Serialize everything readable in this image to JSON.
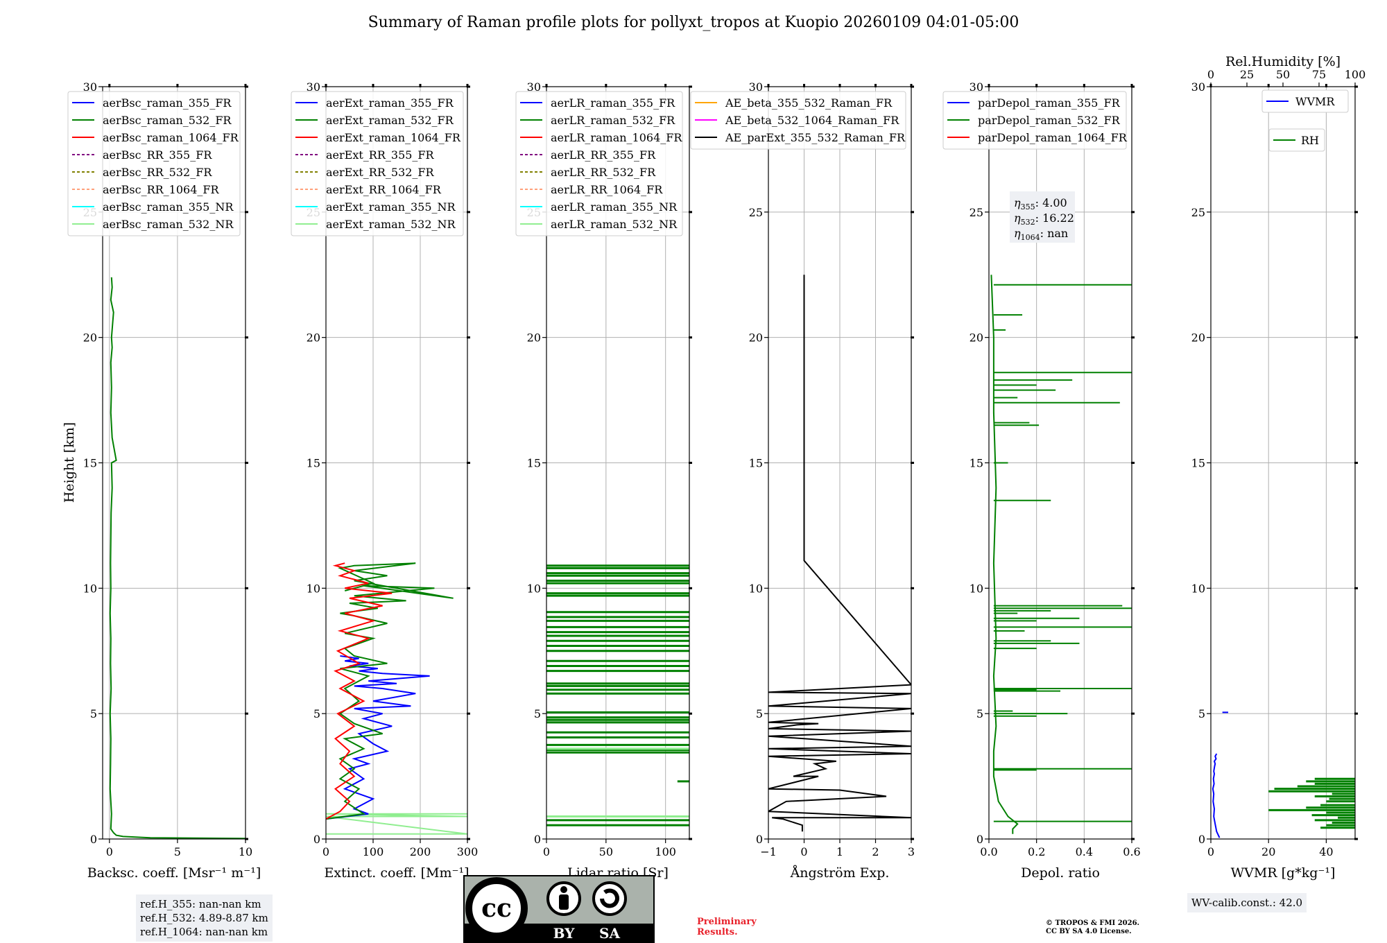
{
  "title": "Summary of Raman profile plots for pollyxt_tropos at Kuopio 20260109 04:01-05:00",
  "ylabel": "Height [km]",
  "ref_box": [
    "ref.H_355: nan-nan km",
    "ref.H_532: 4.89-8.87 km",
    "ref.H_1064: nan-nan km"
  ],
  "wv_box": "WV-calib.const.: 42.0",
  "preliminary": [
    "Preliminary",
    "Results."
  ],
  "copyright": [
    "© TROPOS & FMI 2026.",
    "CC BY SA 4.0 License."
  ],
  "cc_badge": {
    "cc": "cc",
    "by": "BY",
    "sa": "SA"
  },
  "colors": {
    "blue": "#0000ff",
    "green": "#008000",
    "red": "#ff0000",
    "black": "#000000",
    "orange": "#ffa500",
    "magenta": "#ff00ff",
    "purple": "#800080",
    "olive": "#808000",
    "salmon": "#ffa07a",
    "cyan": "#00ffff",
    "lightgreen": "#90ee90"
  },
  "chart_data": [
    {
      "type": "line",
      "xlabel": "Backsc. coeff. [Msr⁻¹ m⁻¹]",
      "xlim": [
        -0.5,
        10
      ],
      "ylim": [
        0,
        30
      ],
      "xticks": [
        0,
        5,
        10
      ],
      "xtick_labels": [
        "0",
        "5",
        "10"
      ],
      "yticks": [
        0,
        5,
        10,
        15,
        20,
        25,
        30
      ],
      "legend": [
        {
          "label": "aerBsc_raman_355_FR",
          "color": "blue",
          "dash": false
        },
        {
          "label": "aerBsc_raman_532_FR",
          "color": "green",
          "dash": false
        },
        {
          "label": "aerBsc_raman_1064_FR",
          "color": "red",
          "dash": false
        },
        {
          "label": "aerBsc_RR_355_FR",
          "color": "purple",
          "dash": true
        },
        {
          "label": "aerBsc_RR_532_FR",
          "color": "olive",
          "dash": true
        },
        {
          "label": "aerBsc_RR_1064_FR",
          "color": "salmon",
          "dash": true
        },
        {
          "label": "aerBsc_raman_355_NR",
          "color": "cyan",
          "dash": false
        },
        {
          "label": "aerBsc_raman_532_NR",
          "color": "lightgreen",
          "dash": false
        }
      ],
      "series": [
        {
          "name": "aerBsc_raman_532_FR",
          "color": "green",
          "x": [
            10,
            3,
            1,
            0.5,
            0.3,
            0.1,
            0.15,
            0.05,
            0.08,
            0.1,
            0.05,
            0.12,
            0.08,
            0.1,
            0.05,
            0.1,
            0.08,
            0.1,
            0.12,
            0.2,
            0.15,
            0.5,
            0.2,
            0.1,
            0.15,
            0.1,
            0.2,
            0.15,
            0.3,
            0.1,
            0.2,
            0.15
          ],
          "y": [
            0.02,
            0.05,
            0.1,
            0.15,
            0.25,
            0.4,
            1,
            2,
            3,
            4,
            5,
            6,
            7,
            8,
            9,
            10,
            11,
            12,
            13,
            14,
            15,
            15.1,
            16,
            17,
            18,
            19,
            19.6,
            20,
            21,
            21.5,
            22,
            22.4
          ]
        }
      ]
    },
    {
      "type": "line",
      "xlabel": "Extinct. coeff. [Mm⁻¹]",
      "xlim": [
        0,
        300
      ],
      "ylim": [
        0,
        30
      ],
      "xticks": [
        0,
        100,
        200,
        300
      ],
      "xtick_labels": [
        "0",
        "100",
        "200",
        "300"
      ],
      "yticks": [
        0,
        5,
        10,
        15,
        20,
        25,
        30
      ],
      "legend": [
        {
          "label": "aerExt_raman_355_FR",
          "color": "blue",
          "dash": false
        },
        {
          "label": "aerExt_raman_532_FR",
          "color": "green",
          "dash": false
        },
        {
          "label": "aerExt_raman_1064_FR",
          "color": "red",
          "dash": false
        },
        {
          "label": "aerExt_RR_355_FR",
          "color": "purple",
          "dash": true
        },
        {
          "label": "aerExt_RR_532_FR",
          "color": "olive",
          "dash": true
        },
        {
          "label": "aerExt_RR_1064_FR",
          "color": "salmon",
          "dash": true
        },
        {
          "label": "aerExt_raman_355_NR",
          "color": "cyan",
          "dash": false
        },
        {
          "label": "aerExt_raman_532_NR",
          "color": "lightgreen",
          "dash": false
        }
      ],
      "series": [
        {
          "name": "aerExt_raman_532_NR",
          "color": "lightgreen",
          "x": [
            0,
            300,
            0,
            300,
            0,
            300
          ],
          "y": [
            0.2,
            0.2,
            0.9,
            0.9,
            1.0,
            1.0
          ]
        },
        {
          "name": "aerExt_raman_355_FR",
          "color": "blue",
          "x": [
            0,
            90,
            60,
            100,
            40,
            80,
            50,
            90,
            60,
            130,
            100,
            70,
            140,
            80,
            120,
            60,
            180,
            100,
            190,
            120,
            60,
            150,
            90,
            220,
            120,
            70,
            110,
            50,
            90,
            40,
            70,
            30
          ],
          "y": [
            0.8,
            1.0,
            1.2,
            1.6,
            2.0,
            2.4,
            2.8,
            3.0,
            3.2,
            3.5,
            3.8,
            4.2,
            4.5,
            4.8,
            5.0,
            5.2,
            5.3,
            5.5,
            5.8,
            6.0,
            6.1,
            6.2,
            6.3,
            6.5,
            6.6,
            6.7,
            6.8,
            6.9,
            7.0,
            7.1,
            7.2,
            7.3
          ]
        },
        {
          "name": "aerExt_raman_532_FR",
          "color": "green",
          "x": [
            0,
            80,
            40,
            70,
            30,
            60,
            30,
            80,
            40,
            120,
            60,
            30,
            70,
            40,
            90,
            30,
            130,
            60,
            40,
            100,
            40,
            130,
            60,
            30,
            110,
            50,
            170,
            60,
            230,
            80,
            270,
            60,
            130,
            60,
            190,
            60,
            30,
            100,
            40
          ],
          "y": [
            0.8,
            1.0,
            1.5,
            2.0,
            2.4,
            2.8,
            3.2,
            3.6,
            4.0,
            4.2,
            4.6,
            5.0,
            5.5,
            6.0,
            6.5,
            6.8,
            7.0,
            7.3,
            7.6,
            8.0,
            8.2,
            8.6,
            8.9,
            9.0,
            9.2,
            9.4,
            9.5,
            9.7,
            10.0,
            10.1,
            9.6,
            10.3,
            10.5,
            10.7,
            11.0,
            10.9,
            10.8,
            10.2,
            9.9
          ]
        },
        {
          "name": "aerExt_raman_1064_FR",
          "color": "red",
          "x": [
            0,
            30,
            50,
            20,
            60,
            30,
            50,
            20,
            60,
            25,
            80,
            30,
            60,
            20,
            70,
            25,
            90,
            30,
            100,
            40,
            120,
            50,
            140,
            40,
            90,
            30,
            60,
            20,
            40
          ],
          "y": [
            0.8,
            1.1,
            1.5,
            2.0,
            2.5,
            3.0,
            3.5,
            4.0,
            4.5,
            5.0,
            5.5,
            6.0,
            6.3,
            6.7,
            7.0,
            7.5,
            8.0,
            8.3,
            8.7,
            9.0,
            9.3,
            9.6,
            9.8,
            10.0,
            10.2,
            10.5,
            10.7,
            10.9,
            11.0
          ]
        }
      ]
    },
    {
      "type": "line",
      "xlabel": "Lidar ratio [Sr]",
      "xlim": [
        0,
        120
      ],
      "ylim": [
        0,
        30
      ],
      "xticks": [
        0,
        50,
        100
      ],
      "xtick_labels": [
        "0",
        "50",
        "100"
      ],
      "yticks": [
        0,
        5,
        10,
        15,
        20,
        25,
        30
      ],
      "legend": [
        {
          "label": "aerLR_raman_355_FR",
          "color": "blue",
          "dash": false
        },
        {
          "label": "aerLR_raman_532_FR",
          "color": "green",
          "dash": false
        },
        {
          "label": "aerLR_raman_1064_FR",
          "color": "red",
          "dash": false
        },
        {
          "label": "aerLR_RR_355_FR",
          "color": "purple",
          "dash": true
        },
        {
          "label": "aerLR_RR_532_FR",
          "color": "olive",
          "dash": true
        },
        {
          "label": "aerLR_RR_1064_FR",
          "color": "salmon",
          "dash": true
        },
        {
          "label": "aerLR_raman_355_NR",
          "color": "cyan",
          "dash": false
        },
        {
          "label": "aerLR_raman_532_NR",
          "color": "lightgreen",
          "dash": false
        }
      ],
      "hlines": [
        {
          "color": "green",
          "y": [
            0.55,
            0.75,
            3.45,
            3.55,
            3.75,
            4.05,
            4.25,
            4.65,
            4.75,
            4.85,
            5.05,
            5.8,
            5.95,
            6.1,
            6.2,
            6.7,
            6.9,
            7.1,
            7.5,
            7.7,
            7.9,
            8.1,
            8.25,
            8.45,
            8.7,
            8.85,
            9.05,
            9.7,
            9.8,
            10.2,
            10.3,
            10.5,
            10.6,
            10.8,
            10.9
          ],
          "x1": 120
        },
        {
          "color": "green",
          "y": [
            2.3
          ],
          "x0": 110,
          "x1": 120
        },
        {
          "color": "lightgreen",
          "y": [
            0.9,
            3.6
          ],
          "x1": 120
        }
      ]
    },
    {
      "type": "line",
      "xlabel": "Ångström Exp.",
      "xlim": [
        -1,
        3
      ],
      "ylim": [
        0,
        30
      ],
      "xticks": [
        -1,
        0,
        1,
        2,
        3
      ],
      "xtick_labels": [
        "−1",
        "0",
        "1",
        "2",
        "3"
      ],
      "yticks": [
        0,
        5,
        10,
        15,
        20,
        25,
        30
      ],
      "legend": [
        {
          "label": "AE_beta_355_532_Raman_FR",
          "color": "orange",
          "dash": false
        },
        {
          "label": "AE_beta_532_1064_Raman_FR",
          "color": "magenta",
          "dash": false
        },
        {
          "label": "AE_parExt_355_532_Raman_FR",
          "color": "black",
          "dash": false
        }
      ],
      "series": [
        {
          "name": "AE_parExt_355_532_Raman_FR",
          "color": "black",
          "x": [
            -0.05,
            -0.05,
            -0.6,
            -0.9,
            3,
            -1,
            -0.5,
            2.3,
            1.0,
            -1,
            0.4,
            -0.3,
            0.6,
            0.3,
            0.9,
            -1,
            3,
            -1,
            3,
            -1,
            3,
            -1,
            -0.2,
            0.4,
            -1,
            3,
            -1,
            3,
            -1,
            3,
            0,
            0,
            0
          ],
          "y": [
            0.3,
            0.55,
            0.8,
            0.85,
            0.85,
            1.1,
            1.5,
            1.7,
            1.95,
            2.0,
            2.5,
            2.5,
            2.8,
            3.0,
            3.1,
            3.3,
            3.4,
            3.6,
            3.7,
            4.1,
            4.3,
            4.4,
            4.55,
            4.6,
            4.65,
            5.2,
            5.3,
            5.8,
            5.85,
            6.15,
            11.1,
            22.5,
            22.5
          ]
        }
      ]
    },
    {
      "type": "line",
      "xlabel": "Depol. ratio",
      "xlim": [
        0,
        0.6
      ],
      "ylim": [
        0,
        30
      ],
      "xticks": [
        0.0,
        0.2,
        0.4,
        0.6
      ],
      "xtick_labels": [
        "0.0",
        "0.2",
        "0.4",
        "0.6"
      ],
      "yticks": [
        0,
        5,
        10,
        15,
        20,
        25,
        30
      ],
      "legend": [
        {
          "label": "parDepol_raman_355_FR",
          "color": "blue",
          "dash": false
        },
        {
          "label": "parDepol_raman_532_FR",
          "color": "green",
          "dash": false
        },
        {
          "label": "parDepol_raman_1064_FR",
          "color": "red",
          "dash": false
        }
      ],
      "annotation": [
        "η355: 4.00",
        "η532: 16.22",
        "η1064: nan"
      ],
      "series": [
        {
          "name": "parDepol_raman_532_FR_base",
          "color": "green",
          "x": [
            0.1,
            0.1,
            0.12,
            0.08,
            0.04,
            0.02,
            0.02,
            0.03,
            0.02,
            0.03,
            0.02,
            0.03,
            0.02,
            0.02,
            0.01
          ],
          "y": [
            0.2,
            0.4,
            0.6,
            0.9,
            1.5,
            2.5,
            3.5,
            4.5,
            6.5,
            8.0,
            11,
            14,
            17,
            20,
            22.5
          ]
        }
      ],
      "spikes": {
        "color": "green",
        "x0": 0.02,
        "y": [
          0.7,
          2.75,
          2.8,
          4.9,
          5.0,
          5.1,
          5.9,
          5.95,
          6.0,
          7.6,
          7.8,
          7.9,
          8.3,
          8.45,
          8.7,
          8.8,
          9.0,
          9.1,
          9.2,
          9.3,
          13.5,
          15.0,
          16.5,
          16.6,
          17.4,
          17.6,
          17.9,
          18.1,
          18.3,
          18.6,
          20.3,
          20.9,
          22.1
        ],
        "x": [
          0.6,
          0.2,
          0.6,
          0.2,
          0.33,
          0.1,
          0.3,
          0.2,
          0.6,
          0.2,
          0.38,
          0.26,
          0.15,
          0.6,
          0.2,
          0.38,
          0.12,
          0.26,
          0.6,
          0.56,
          0.26,
          0.08,
          0.21,
          0.17,
          0.55,
          0.12,
          0.28,
          0.2,
          0.35,
          0.6,
          0.07,
          0.14,
          0.6
        ]
      }
    },
    {
      "type": "line",
      "xlabel": "WVMR [g*kg⁻¹]",
      "xlim": [
        0,
        50
      ],
      "ylim": [
        0,
        30
      ],
      "xticks": [
        0,
        20,
        40
      ],
      "xtick_labels": [
        "0",
        "20",
        "40"
      ],
      "yticks": [
        0,
        5,
        10,
        15,
        20,
        25,
        30
      ],
      "top_axis": {
        "label": "Rel.Humidity [%]",
        "ticks": [
          0,
          25,
          50,
          75,
          100
        ],
        "tick_labels": [
          "0",
          "25",
          "50",
          "75",
          "100"
        ],
        "lim": [
          0,
          100
        ]
      },
      "legend": [
        {
          "label": "WVMR",
          "color": "blue",
          "dash": false
        },
        {
          "label": "RH",
          "color": "green",
          "dash": false
        }
      ],
      "series": [
        {
          "name": "WVMR",
          "color": "blue",
          "x": [
            3,
            2,
            1.5,
            1,
            1.2,
            0.8,
            1,
            0.7,
            1.1,
            0.9,
            1.2,
            1,
            1.3,
            1.5,
            1.2,
            1.8,
            1.5,
            2
          ],
          "y": [
            0.05,
            0.3,
            0.6,
            0.9,
            1.2,
            1.5,
            1.8,
            2.0,
            2.2,
            2.4,
            2.6,
            2.7,
            2.9,
            3.0,
            3.1,
            3.2,
            3.3,
            3.4
          ]
        }
      ],
      "rh_spikes": {
        "color": "green",
        "x1": 50,
        "y": [
          0.45,
          0.55,
          0.65,
          0.75,
          0.85,
          0.95,
          1.05,
          1.15,
          1.25,
          1.35,
          1.5,
          1.6,
          1.7,
          1.8,
          1.9,
          2.0,
          2.1,
          2.2,
          2.3,
          2.4
        ],
        "x0": [
          38,
          40,
          42,
          36,
          44,
          35,
          40,
          20,
          33,
          38,
          40,
          41,
          36,
          42,
          20,
          22,
          30,
          36,
          33,
          36
        ]
      },
      "wvmr_point": {
        "x": [
          4,
          6
        ],
        "y": [
          5.05,
          5.05
        ]
      }
    }
  ]
}
